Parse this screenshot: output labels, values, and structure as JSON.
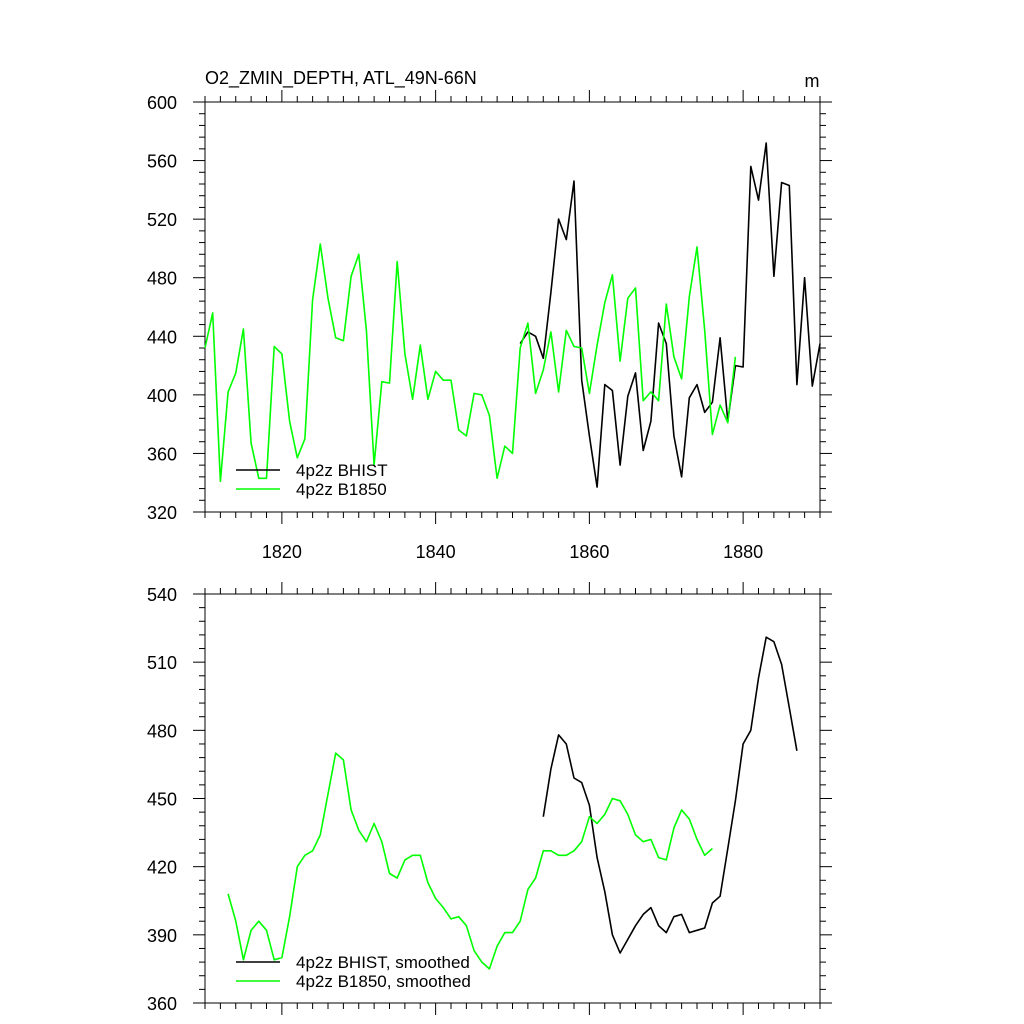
{
  "chart_data": [
    {
      "type": "line",
      "title": "O2_ZMIN_DEPTH, ATL_49N-66N",
      "units": "m",
      "xlim": [
        1810,
        1890
      ],
      "ylim": [
        320,
        600
      ],
      "xticks": [
        1820,
        1840,
        1860,
        1880
      ],
      "yticks": [
        320,
        360,
        400,
        440,
        480,
        520,
        560,
        600
      ],
      "xtick_labels": [
        "1820",
        "1840",
        "1860",
        "1880"
      ],
      "ytick_labels": [
        "320",
        "360",
        "400",
        "440",
        "480",
        "520",
        "560",
        "600"
      ],
      "legend_position": "bottom-left",
      "series": [
        {
          "name": "4p2z BHIST",
          "color": "#000000",
          "x": [
            1851,
            1852,
            1853,
            1854,
            1855,
            1856,
            1857,
            1858,
            1859,
            1860,
            1861,
            1862,
            1863,
            1864,
            1865,
            1866,
            1867,
            1868,
            1869,
            1870,
            1871,
            1872,
            1873,
            1874,
            1875,
            1876,
            1877,
            1878,
            1879,
            1880,
            1881,
            1882,
            1883,
            1884,
            1885,
            1886,
            1887,
            1888,
            1889,
            1890
          ],
          "values": [
            435,
            443,
            440,
            425,
            470,
            520,
            506,
            546,
            410,
            372,
            337,
            407,
            403,
            352,
            399,
            415,
            362,
            382,
            449,
            435,
            372,
            344,
            398,
            407,
            388,
            395,
            439,
            382,
            420,
            419,
            556,
            533,
            572,
            481,
            545,
            543,
            407,
            480,
            406,
            435
          ]
        },
        {
          "name": "4p2z B1850",
          "color": "#00ff00",
          "x": [
            1810,
            1811,
            1812,
            1813,
            1814,
            1815,
            1816,
            1817,
            1818,
            1819,
            1820,
            1821,
            1822,
            1823,
            1824,
            1825,
            1826,
            1827,
            1828,
            1829,
            1830,
            1831,
            1832,
            1833,
            1834,
            1835,
            1836,
            1837,
            1838,
            1839,
            1840,
            1841,
            1842,
            1843,
            1844,
            1845,
            1846,
            1847,
            1848,
            1849,
            1850,
            1851,
            1852,
            1853,
            1854,
            1855,
            1856,
            1857,
            1858,
            1859,
            1860,
            1861,
            1862,
            1863,
            1864,
            1865,
            1866,
            1867,
            1868,
            1869,
            1870,
            1871,
            1872,
            1873,
            1874,
            1875,
            1876,
            1877,
            1878,
            1879
          ],
          "values": [
            432,
            456,
            341,
            402,
            415,
            445,
            367,
            343,
            343,
            433,
            428,
            382,
            357,
            370,
            465,
            503,
            466,
            439,
            437,
            481,
            496,
            444,
            352,
            409,
            408,
            491,
            428,
            397,
            434,
            397,
            416,
            410,
            410,
            376,
            372,
            401,
            400,
            386,
            343,
            365,
            360,
            432,
            449,
            401,
            417,
            443,
            402,
            444,
            433,
            432,
            401,
            434,
            463,
            482,
            423,
            466,
            473,
            396,
            402,
            396,
            462,
            426,
            411,
            467,
            501,
            444,
            373,
            393,
            381,
            426
          ]
        }
      ]
    },
    {
      "type": "line",
      "title": "",
      "xlim": [
        1810,
        1890
      ],
      "ylim": [
        360,
        540
      ],
      "xticks": [
        1820,
        1840,
        1860,
        1880
      ],
      "yticks": [
        360,
        390,
        420,
        450,
        480,
        510,
        540
      ],
      "ytick_labels": [
        "360",
        "390",
        "420",
        "450",
        "480",
        "510",
        "540"
      ],
      "legend_position": "bottom-left",
      "series": [
        {
          "name": "4p2z BHIST, smoothed",
          "color": "#000000",
          "x": [
            1854,
            1855,
            1856,
            1857,
            1858,
            1859,
            1860,
            1861,
            1862,
            1863,
            1864,
            1865,
            1866,
            1867,
            1868,
            1869,
            1870,
            1871,
            1872,
            1873,
            1874,
            1875,
            1876,
            1877,
            1878,
            1879,
            1880,
            1881,
            1882,
            1883,
            1884,
            1885,
            1886,
            1887
          ],
          "values": [
            442,
            463,
            478,
            474,
            459,
            457,
            447,
            424,
            409,
            390,
            382,
            388,
            394,
            399,
            402,
            394,
            391,
            398,
            399,
            391,
            392,
            393,
            404,
            407,
            428,
            449,
            474,
            480,
            503,
            521,
            519,
            509,
            490,
            471
          ]
        },
        {
          "name": "4p2z B1850, smoothed",
          "color": "#00ff00",
          "x": [
            1813,
            1814,
            1815,
            1816,
            1817,
            1818,
            1819,
            1820,
            1821,
            1822,
            1823,
            1824,
            1825,
            1826,
            1827,
            1828,
            1829,
            1830,
            1831,
            1832,
            1833,
            1834,
            1835,
            1836,
            1837,
            1838,
            1839,
            1840,
            1841,
            1842,
            1843,
            1844,
            1845,
            1846,
            1847,
            1848,
            1849,
            1850,
            1851,
            1852,
            1853,
            1854,
            1855,
            1856,
            1857,
            1858,
            1859,
            1860,
            1861,
            1862,
            1863,
            1864,
            1865,
            1866,
            1867,
            1868,
            1869,
            1870,
            1871,
            1872,
            1873,
            1874,
            1875,
            1876
          ],
          "values": [
            408,
            396,
            379,
            392,
            396,
            392,
            379,
            380,
            398,
            420,
            425,
            427,
            434,
            452,
            470,
            467,
            445,
            436,
            431,
            439,
            431,
            417,
            415,
            423,
            425,
            425,
            413,
            406,
            402,
            397,
            398,
            394,
            383,
            378,
            375,
            385,
            391,
            391,
            396,
            410,
            415,
            427,
            427,
            425,
            425,
            427,
            431,
            442,
            439,
            443,
            450,
            449,
            443,
            434,
            431,
            432,
            424,
            423,
            437,
            445,
            441,
            432,
            425,
            428
          ]
        }
      ]
    }
  ]
}
